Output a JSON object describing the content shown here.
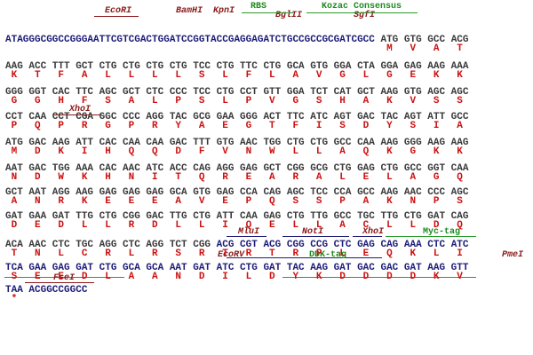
{
  "rows": [
    {
      "dna": [
        "ATAGGGCGGCCGGGAATTCGTCGACTGGATCCGGTACCGAGGAGATCTGCCGCCGCGATCGCC",
        " ATG GTG GCC ACG"
      ],
      "protein": "                                                                 M   V   A   T"
    },
    {
      "dna": [
        "AAG ACC TTT GCT CTG CTG CTG CTG TCC CTG TTC CTG GCA GTG GGA CTA GGA GAG AAG AAA"
      ],
      "protein": " K   T   F   A   L   L   L   L   S   L   F   L   A   V   G   L   G   E   K   K"
    },
    {
      "dna": [
        "GGG GGT CAC TTC AGC GCT CTC CCC TCC CTG CCT GTT GGA TCT CAT GCT AAG GTG AGC AGC"
      ],
      "protein": " G   G   H   F   S   A   L   P   S   L   P   V   G   S   H   A   K   V   S   S"
    },
    {
      "dna": [
        "CCT CAA CCT CGA GGC CCC AGG TAC GCG GAA GGG ACT TTC ATC AGT GAC TAC AGT ATT GCC"
      ],
      "protein": " P   Q   P   R   G   P   R   Y   A   E   G   T   F   I   S   D   Y   S   I   A"
    },
    {
      "dna": [
        "ATG GAC AAG ATT CAC CAA CAA GAC TTT GTG AAC TGG CTG CTG GCC CAA AAG GGG AAG AAG"
      ],
      "protein": " M   D   K   I   H   Q   Q   D   F   V   N   W   L   L   A   Q   K   G   K   K"
    },
    {
      "dna": [
        "AAT GAC TGG AAA CAC AAC ATC ACC CAG AGG GAG GCT CGG GCG CTG GAG CTG GCC GGT CAA"
      ],
      "protein": " N   D   W   K   H   N   I   T   Q   R   E   A   R   A   L   E   L   A   G   Q"
    },
    {
      "dna": [
        "GCT AAT AGG AAG GAG GAG GAG GCA GTG GAG CCA CAG AGC TCC CCA GCC AAG AAC CCC AGC"
      ],
      "protein": " A   N   R   K   E   E   E   A   V   E   P   Q   S   S   P   A   K   N   P   S"
    },
    {
      "dna": [
        "GAT GAA GAT TTG CTG CGG GAC TTG CTG ATT CAA GAG CTG TTG GCC TGC TTG CTG GAT CAG"
      ],
      "protein": " D   E   D   L   L   R   D   L   L   I   Q   E   L   L   A   C   L   L   D   Q"
    },
    {
      "dna": [
        "ACA AAC CTC TGC AGG CTC AGG TCT CGG",
        " ACG CGT ACG CGG CCG CTC GAG CAG AAA CTC ATC"
      ],
      "protein": " T   N   L   C   R   L   R   S   R   T   R   T   R   P   L   E   Q   K   L   I"
    },
    {
      "dna": [
        "TCA GAA GAG GAT CTG GCA GCA AAT GAT ATC CTG GAT TAC AAG GAT GAC GAC GAT AAG GTT"
      ],
      "protein": " S   E   E   D   L   A   A   N   D   I   L   D   Y   K   D   D   D   D   K   V"
    },
    {
      "dna": [
        "TAA ACGGCCGGCC"
      ],
      "protein": " *"
    }
  ],
  "annotations": [
    {
      "label": "EcoRI"
    },
    {
      "label": "BamHI"
    },
    {
      "label": "KpnI"
    },
    {
      "label": "RBS"
    },
    {
      "label": "BglII"
    },
    {
      "label": "Kozac Consensus"
    },
    {
      "label": "SgfI"
    },
    {
      "label": "XhoI"
    },
    {
      "label": "MluI"
    },
    {
      "label": "NotI"
    },
    {
      "label": "XhoI"
    },
    {
      "label": "Myc-tag"
    },
    {
      "label": "EcoRV"
    },
    {
      "label": "DDK-tag"
    },
    {
      "label": "PmeI"
    },
    {
      "label": "FseI"
    }
  ]
}
